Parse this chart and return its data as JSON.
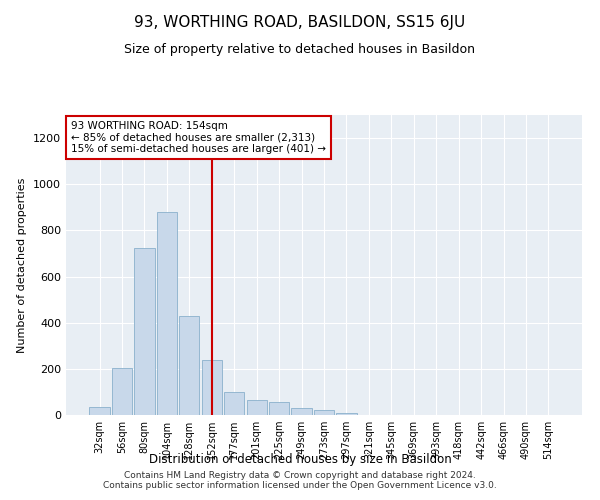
{
  "title": "93, WORTHING ROAD, BASILDON, SS15 6JU",
  "subtitle": "Size of property relative to detached houses in Basildon",
  "xlabel": "Distribution of detached houses by size in Basildon",
  "ylabel": "Number of detached properties",
  "categories": [
    "32sqm",
    "56sqm",
    "80sqm",
    "104sqm",
    "128sqm",
    "152sqm",
    "177sqm",
    "201sqm",
    "225sqm",
    "249sqm",
    "273sqm",
    "297sqm",
    "321sqm",
    "345sqm",
    "369sqm",
    "393sqm",
    "418sqm",
    "442sqm",
    "466sqm",
    "490sqm",
    "514sqm"
  ],
  "values": [
    35,
    205,
    725,
    880,
    430,
    240,
    100,
    65,
    55,
    30,
    20,
    10,
    0,
    0,
    0,
    0,
    0,
    0,
    0,
    0,
    0
  ],
  "bar_color": "#c8d8ea",
  "bar_edge_color": "#8ab0cc",
  "vline_color": "#cc0000",
  "annotation_text": "93 WORTHING ROAD: 154sqm\n← 85% of detached houses are smaller (2,313)\n15% of semi-detached houses are larger (401) →",
  "annotation_box_color": "#ffffff",
  "annotation_box_edge": "#cc0000",
  "ylim": [
    0,
    1300
  ],
  "yticks": [
    0,
    200,
    400,
    600,
    800,
    1000,
    1200
  ],
  "bg_color": "#e8eef4",
  "footer": "Contains HM Land Registry data © Crown copyright and database right 2024.\nContains public sector information licensed under the Open Government Licence v3.0.",
  "title_fontsize": 11,
  "subtitle_fontsize": 9,
  "xlabel_fontsize": 8.5,
  "ylabel_fontsize": 8,
  "footer_fontsize": 6.5
}
